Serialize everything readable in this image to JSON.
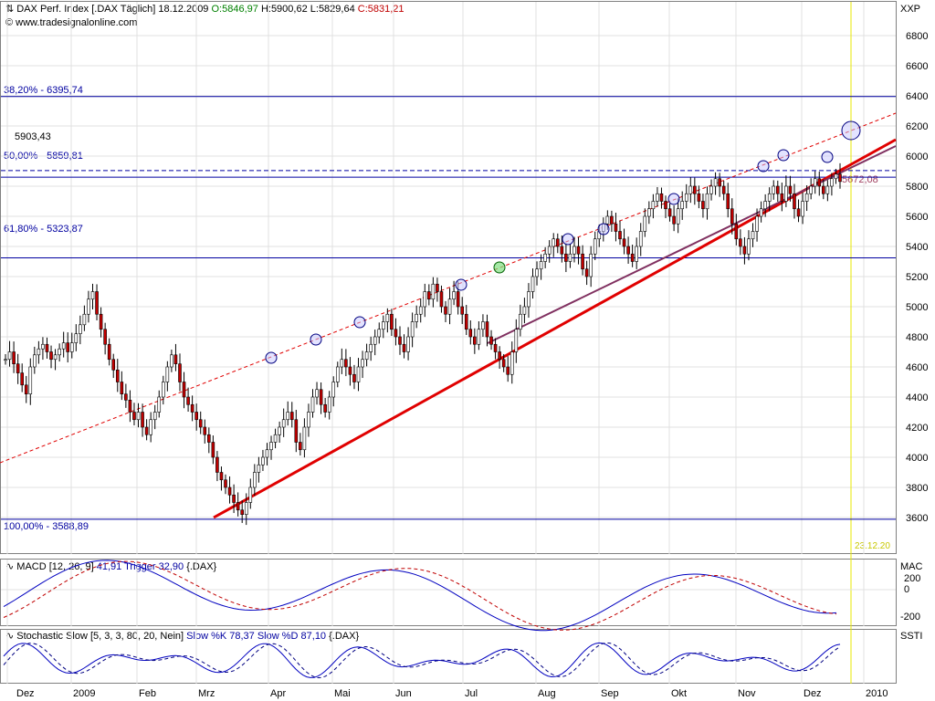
{
  "header": {
    "title": "DAX Perf. Index [.DAX  Täglich]",
    "date": "18.12.2009",
    "open": "O:5846,97",
    "high": "H:5900,62",
    "low": "L:5829,64",
    "close": "C:5831,21",
    "copyright": "© www.tradesignalonline.com",
    "axis_code": "XXP"
  },
  "fib_labels": {
    "f382": "38,20% - 6395,74",
    "f500": "50,00% - 5859,81",
    "f618": "61,80% - 5323,87",
    "f100": "100,00% - 3588,89",
    "level_5903": "5903,43",
    "level_5672": "5672,08",
    "date_mark": "23.12.20"
  },
  "macd": {
    "title": "MACD [12, 26, 9]",
    "value": "41,91",
    "trigger": "Trigger 32,90",
    "symbol": "{.DAX}",
    "axis_code": "MAC",
    "ticks": [
      "200",
      "0",
      "-200"
    ]
  },
  "stoch": {
    "title": "Stochastic Slow [5, 3, 3, 80, 20, Nein]",
    "k": "Slow %K 78,37",
    "d": "Slow %D 87,10",
    "symbol": "{.DAX}",
    "axis_code": "SSTI"
  },
  "months": [
    "Dez",
    "2009",
    "Feb",
    "Mrz",
    "Apr",
    "Mai",
    "Jun",
    "Jul",
    "Aug",
    "Sep",
    "Okt",
    "Nov",
    "Dez",
    "2010"
  ],
  "chart_data": {
    "type": "candlestick",
    "title": "DAX Perf. Index [.DAX  Täglich]",
    "y_axis_ticks": [
      3600,
      3800,
      4000,
      4200,
      4400,
      4600,
      4800,
      5000,
      5200,
      5400,
      5600,
      5800,
      6000,
      6200,
      6400,
      6600,
      6800
    ],
    "ylim": [
      3480,
      6900
    ],
    "x_axis_labels": [
      "Dez",
      "2009",
      "Feb",
      "Mrz",
      "Apr",
      "Mai",
      "Jun",
      "Jul",
      "Aug",
      "Sep",
      "Okt",
      "Nov",
      "Dez",
      "2010"
    ],
    "grid": true,
    "fibonacci_levels": [
      {
        "label": "38,20%",
        "value": 6395.74
      },
      {
        "label": "50,00%",
        "value": 5859.81
      },
      {
        "label": "61,80%",
        "value": 5323.87
      },
      {
        "label": "100,00%",
        "value": 3588.89
      }
    ],
    "horizontal_lines": [
      5903.43
    ],
    "annotations": [
      "5672,08",
      "23.12.20"
    ],
    "approx_closes": [
      4650,
      4700,
      4620,
      4560,
      4480,
      4420,
      4600,
      4680,
      4720,
      4750,
      4700,
      4650,
      4680,
      4720,
      4760,
      4700,
      4760,
      4820,
      4880,
      4950,
      5050,
      5100,
      4950,
      4850,
      4750,
      4650,
      4580,
      4500,
      4420,
      4380,
      4300,
      4250,
      4300,
      4200,
      4150,
      4250,
      4300,
      4400,
      4500,
      4600,
      4680,
      4620,
      4500,
      4400,
      4350,
      4300,
      4250,
      4200,
      4150,
      4100,
      4000,
      3900,
      3850,
      3800,
      3750,
      3700,
      3650,
      3620,
      3700,
      3800,
      3900,
      3950,
      4000,
      4050,
      4100,
      4150,
      4200,
      4250,
      4300,
      4250,
      4100,
      4050,
      4200,
      4300,
      4400,
      4450,
      4350,
      4300,
      4400,
      4500,
      4600,
      4650,
      4600,
      4550,
      4500,
      4600,
      4650,
      4700,
      4750,
      4800,
      4850,
      4900,
      4950,
      4850,
      4800,
      4750,
      4700,
      4800,
      4900,
      4950,
      5000,
      5100,
      5050,
      5150,
      5100,
      5000,
      4950,
      5050,
      5100,
      5000,
      4950,
      4850,
      4800,
      4750,
      4850,
      4900,
      4800,
      4750,
      4700,
      4650,
      4600,
      4550,
      4700,
      4850,
      4950,
      5000,
      5100,
      5200,
      5250,
      5300,
      5350,
      5400,
      5450,
      5400,
      5350,
      5300,
      5350,
      5400,
      5350,
      5250,
      5200,
      5350,
      5450,
      5500,
      5550,
      5600,
      5550,
      5500,
      5450,
      5400,
      5350,
      5300,
      5400,
      5500,
      5600,
      5650,
      5700,
      5750,
      5700,
      5650,
      5600,
      5550,
      5650,
      5700,
      5750,
      5800,
      5750,
      5700,
      5650,
      5750,
      5800,
      5850,
      5800,
      5750,
      5650,
      5550,
      5450,
      5400,
      5350,
      5450,
      5500,
      5600,
      5650,
      5700,
      5750,
      5800,
      5750,
      5700,
      5800,
      5750,
      5650,
      5600,
      5700,
      5750,
      5800,
      5850,
      5800,
      5750,
      5800,
      5850,
      5880,
      5831
    ]
  }
}
